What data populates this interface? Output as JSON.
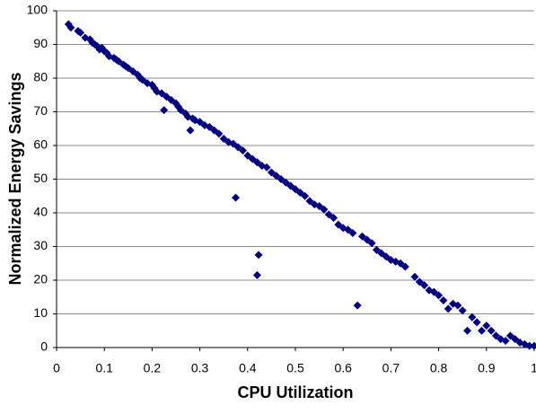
{
  "chart_data": {
    "type": "scatter",
    "x_label": "CPU Utilization",
    "y_label": "Normalized Energy Savings",
    "color": "#000080",
    "grid": true,
    "xlim": [
      0,
      1
    ],
    "xticks": [
      0,
      0.1,
      0.2,
      0.3,
      0.4,
      0.5,
      0.6,
      0.7,
      0.8,
      0.9,
      1
    ],
    "ylim": [
      0,
      100
    ],
    "yticks": [
      0,
      10,
      20,
      30,
      40,
      50,
      60,
      70,
      80,
      90,
      100
    ],
    "x": [
      0.025,
      0.03,
      0.045,
      0.05,
      0.06,
      0.07,
      0.075,
      0.08,
      0.085,
      0.09,
      0.095,
      0.1,
      0.105,
      0.11,
      0.12,
      0.125,
      0.13,
      0.14,
      0.145,
      0.15,
      0.16,
      0.17,
      0.175,
      0.18,
      0.19,
      0.2,
      0.205,
      0.21,
      0.22,
      0.225,
      0.23,
      0.24,
      0.25,
      0.255,
      0.26,
      0.27,
      0.275,
      0.28,
      0.285,
      0.29,
      0.3,
      0.31,
      0.32,
      0.33,
      0.34,
      0.35,
      0.36,
      0.37,
      0.375,
      0.38,
      0.39,
      0.4,
      0.41,
      0.42,
      0.423,
      0.42,
      0.43,
      0.44,
      0.45,
      0.46,
      0.47,
      0.48,
      0.49,
      0.5,
      0.51,
      0.52,
      0.53,
      0.54,
      0.55,
      0.56,
      0.57,
      0.58,
      0.59,
      0.6,
      0.61,
      0.62,
      0.63,
      0.64,
      0.65,
      0.66,
      0.67,
      0.68,
      0.69,
      0.7,
      0.71,
      0.72,
      0.73,
      0.75,
      0.76,
      0.77,
      0.78,
      0.79,
      0.8,
      0.81,
      0.82,
      0.83,
      0.84,
      0.85,
      0.86,
      0.87,
      0.88,
      0.89,
      0.9,
      0.91,
      0.92,
      0.93,
      0.94,
      0.95,
      0.96,
      0.97,
      0.98,
      0.99,
      1
    ],
    "values": [
      96,
      95,
      94,
      93.5,
      92,
      91.5,
      90.5,
      90,
      89.5,
      88.5,
      89,
      88,
      87.5,
      86.5,
      86,
      85.5,
      85,
      84,
      83.5,
      83,
      82,
      81,
      80,
      79.5,
      78.5,
      78,
      77,
      76,
      75.5,
      70.5,
      74.5,
      73.5,
      72.5,
      71.5,
      70.5,
      69.5,
      68.5,
      64.5,
      68,
      67.5,
      67,
      66,
      65.5,
      64.5,
      63.5,
      62,
      61,
      60.5,
      44.5,
      59.5,
      58.5,
      57,
      56,
      55,
      27.5,
      21.5,
      54,
      53.5,
      52,
      51,
      50,
      49,
      48,
      47,
      46,
      45,
      43.5,
      42.5,
      42,
      41,
      39.5,
      38.5,
      36.5,
      35.5,
      35,
      34,
      12.5,
      33,
      32,
      31,
      29,
      28,
      27,
      26,
      25.5,
      25,
      24,
      21,
      19.5,
      18.5,
      17,
      16.5,
      15.5,
      14,
      11.5,
      13,
      12.5,
      11,
      5,
      9,
      7.5,
      5,
      6.5,
      5,
      3.5,
      2.5,
      2,
      3.5,
      2.5,
      1.5,
      1,
      0.5,
      0.5
    ]
  }
}
